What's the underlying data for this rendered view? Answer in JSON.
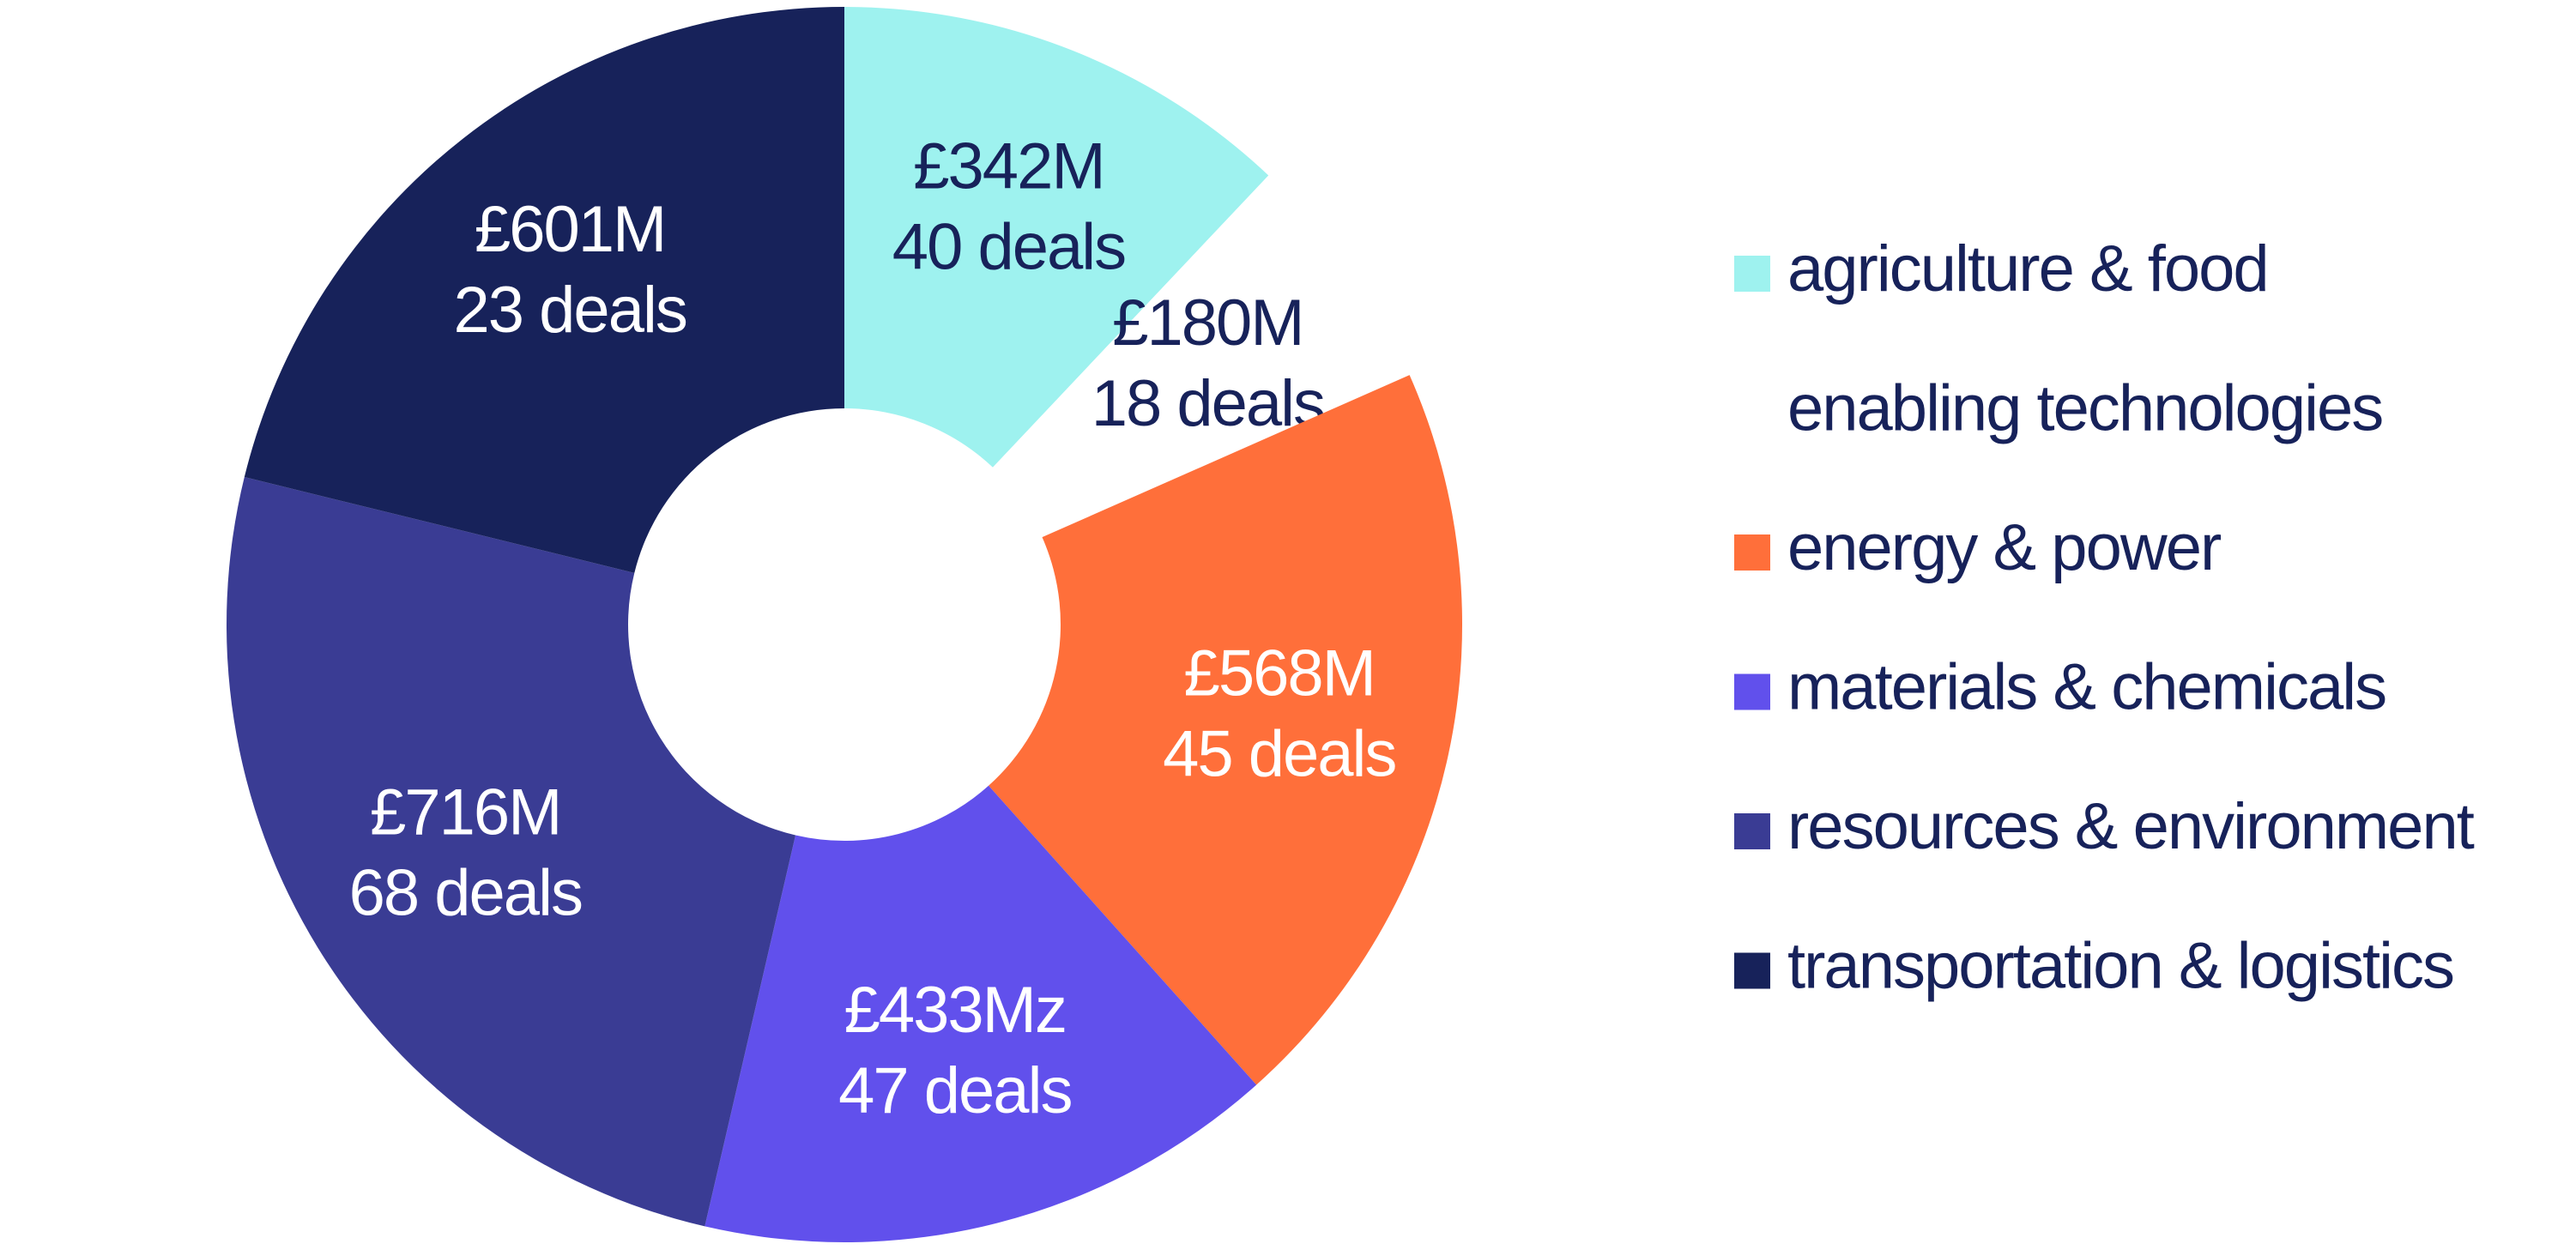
{
  "chart_data": {
    "type": "donut",
    "categories": [
      "agriculture & food",
      "enabling technologies",
      "energy & power",
      "materials & chemicals",
      "resources & environment",
      "transportation & logistics"
    ],
    "values": [
      342,
      180,
      568,
      433,
      716,
      601
    ],
    "value_labels": [
      "£342M",
      "£180M",
      "£568M",
      "£433Mz",
      "£716M",
      "£601M"
    ],
    "deal_counts": [
      40,
      18,
      45,
      47,
      68,
      23
    ],
    "deal_labels": [
      "40 deals",
      "18 deals",
      "45 deals",
      "47 deals",
      "68 deals",
      "23 deals"
    ],
    "colors": [
      "#9ef2ef",
      "#ffffff",
      "#ff6f3a",
      "#6150ec",
      "#3a3c94",
      "#17225a"
    ],
    "legend": "right"
  }
}
